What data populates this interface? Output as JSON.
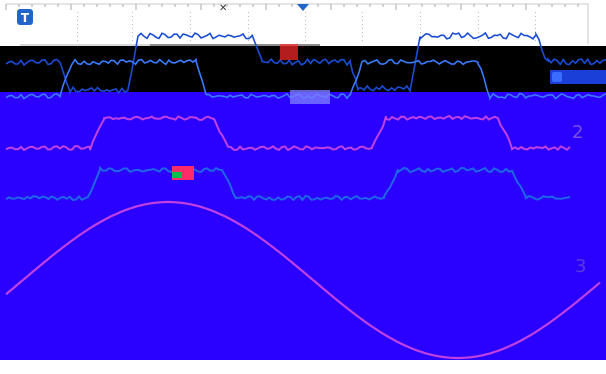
{
  "window": {
    "title": ""
  },
  "markers": {
    "trigger_point_symbol": "T",
    "trigger_point_icon": "trigger-point-icon",
    "trigger_position_icon": "trigger-position-arrow-icon"
  },
  "channels": [
    {
      "id": "1",
      "label": "1",
      "color": "#1a3fd8",
      "icon": "channel-1-marker-icon"
    },
    {
      "id": "2",
      "label": "2",
      "color": "#b040e0",
      "icon": "channel-2-marker-icon"
    },
    {
      "id": "3",
      "label": "3",
      "color": "#1a4cd8",
      "icon": "channel-3-marker-icon"
    },
    {
      "id": "4",
      "label": "3",
      "color": "#b040e0",
      "icon": "channel-4-marker-icon"
    }
  ],
  "colors": {
    "grid_background": "#ffffff",
    "plot_background_top": "#000000",
    "plot_background_main": "#2a00ff",
    "trace_blue": "#1a4cd8",
    "trace_magenta": "#b040e0",
    "grid_line": "#bbbbbb"
  }
}
